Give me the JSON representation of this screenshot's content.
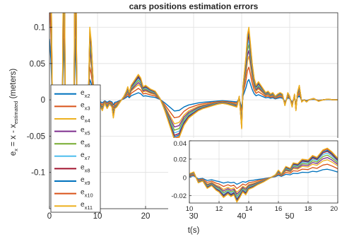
{
  "chart_data": [
    {
      "type": "line",
      "role": "main",
      "title": "cars positions estimation errors",
      "xlabel": "t(s)",
      "ylabel": {
        "base": "e",
        "base_sub": "x",
        "mid": " = x - x",
        "mid_sub": "estimated",
        "tail": " (meters)"
      },
      "xlim": [
        0,
        60
      ],
      "ylim": [
        -0.15,
        0.12
      ],
      "xticks": [
        0,
        10,
        20,
        30,
        40,
        50
      ],
      "yticks": [
        -0.1,
        -0.05,
        0,
        0.05,
        0.1
      ],
      "ytick_labels": [
        "-0.1",
        "-0.05",
        "0",
        "0.05",
        "0.1"
      ],
      "grid": true,
      "legend": "left-bottom, inside axes",
      "envelope_note": "each series = envelope value times its scale",
      "envelope_x": [
        0,
        0.3,
        0.6,
        0.9,
        1.2,
        1.5,
        1.8,
        2.1,
        2.4,
        2.7,
        3.0,
        3.3,
        3.6,
        3.9,
        4.2,
        4.5,
        4.8,
        5.1,
        5.4,
        5.7,
        6.0,
        6.3,
        6.6,
        6.9,
        7.2,
        7.5,
        7.8,
        8.1,
        8.4,
        8.7,
        9.0,
        9.3,
        9.6,
        9.9,
        10.2,
        10.5,
        11.0,
        11.5,
        12.0,
        12.5,
        13.0,
        13.3,
        13.6,
        14.0,
        14.5,
        15.0,
        15.5,
        16.0,
        16.3,
        16.6,
        17.0,
        17.5,
        18.0,
        18.5,
        19.0,
        19.5,
        20.0,
        21.0,
        22.0,
        23.0,
        24.0,
        25.0,
        26.0,
        27.0,
        28.0,
        29.0,
        30.0,
        31.0,
        32.0,
        33.0,
        34.0,
        35.0,
        36.0,
        37.0,
        38.0,
        39.0,
        39.5,
        40.0,
        40.3,
        40.6,
        40.9,
        41.2,
        41.5,
        41.8,
        42.2,
        42.6,
        43.0,
        43.5,
        44.0,
        44.5,
        45.0,
        45.5,
        46.0,
        46.5,
        47.0,
        47.5,
        48.0,
        48.5,
        49.0,
        49.3,
        49.6,
        50.0,
        50.5,
        51.0,
        51.3,
        51.6,
        52.0,
        52.5,
        53.0,
        53.5,
        54.0,
        55.0,
        56.0,
        57.0,
        58.0,
        59.0,
        60.0
      ],
      "envelope_y": [
        0.3,
        0.2,
        0.0,
        0.0,
        0.0,
        0.0,
        0.0,
        0.0,
        0.0,
        0.0,
        0.3,
        0.0,
        0.0,
        0.0,
        0.0,
        0.0,
        0.0,
        0.0,
        0.3,
        0.0,
        0.0,
        0.0,
        0.0,
        0.0,
        0.0,
        0.0,
        0.0,
        0.0,
        0.1,
        0.08,
        0.04,
        0.0,
        -0.015,
        -0.01,
        -0.02,
        -0.008,
        -0.015,
        -0.005,
        -0.012,
        -0.006,
        -0.01,
        -0.025,
        -0.012,
        -0.01,
        -0.005,
        0.0,
        0.005,
        0.012,
        0.018,
        0.01,
        0.02,
        0.025,
        0.03,
        0.035,
        0.03,
        0.018,
        0.02,
        0.015,
        0.012,
        0.002,
        -0.015,
        -0.035,
        -0.055,
        -0.052,
        -0.035,
        -0.025,
        -0.02,
        -0.015,
        -0.012,
        -0.01,
        -0.008,
        -0.006,
        -0.005,
        -0.006,
        -0.008,
        -0.01,
        0.005,
        -0.04,
        0.02,
        0.04,
        0.06,
        0.09,
        0.1,
        0.08,
        0.05,
        0.03,
        0.02,
        0.025,
        0.02,
        0.015,
        0.01,
        0.012,
        0.008,
        0.01,
        0.005,
        0.008,
        0.01,
        0.008,
        -0.008,
        0.0,
        0.01,
        0.005,
        -0.01,
        0.008,
        -0.015,
        0.01,
        0.02,
        -0.003,
        0.0,
        -0.003,
        0.0,
        0.002,
        -0.002,
        0.0,
        0.001,
        0.0,
        0.0
      ],
      "series": [
        {
          "name": "x2",
          "color": "#0072bd",
          "scale": 0.28
        },
        {
          "name": "x3",
          "color": "#d95319",
          "scale": 0.45
        },
        {
          "name": "x4",
          "color": "#edb120",
          "scale": 0.6
        },
        {
          "name": "x5",
          "color": "#7e2f8e",
          "scale": 0.68
        },
        {
          "name": "x6",
          "color": "#77ac30",
          "scale": 0.76
        },
        {
          "name": "x7",
          "color": "#4dbeee",
          "scale": 0.83
        },
        {
          "name": "x8",
          "color": "#a2142f",
          "scale": 0.89
        },
        {
          "name": "x9",
          "color": "#0072bd",
          "scale": 0.93
        },
        {
          "name": "x10",
          "color": "#d95319",
          "scale": 0.97
        },
        {
          "name": "x11",
          "color": "#edb120",
          "scale": 1.0
        }
      ]
    },
    {
      "type": "line",
      "role": "inset",
      "xlim": [
        10,
        20
      ],
      "ylim": [
        -0.028,
        0.04
      ],
      "xticks": [
        10,
        12,
        14,
        16,
        18,
        20
      ],
      "yticks": [
        -0.02,
        0,
        0.02,
        0.04
      ],
      "ytick_labels": [
        "-0.02",
        "0",
        "0.02",
        "0.04"
      ],
      "grid": true,
      "envelope_x": [
        10.0,
        10.3,
        10.6,
        10.9,
        11.2,
        11.5,
        11.8,
        12.0,
        12.3,
        12.6,
        12.8,
        13.0,
        13.2,
        13.4,
        13.6,
        13.8,
        14.0,
        14.3,
        14.6,
        15.0,
        15.4,
        15.8,
        16.0,
        16.2,
        16.5,
        16.8,
        17.0,
        17.3,
        17.6,
        18.0,
        18.3,
        18.6,
        19.0,
        19.3,
        19.6,
        20.0
      ],
      "envelope_y": [
        0.004,
        0.006,
        -0.006,
        -0.004,
        -0.012,
        -0.009,
        -0.014,
        -0.016,
        -0.022,
        -0.018,
        -0.021,
        -0.019,
        -0.027,
        -0.022,
        -0.016,
        -0.019,
        -0.013,
        -0.011,
        -0.008,
        -0.005,
        -0.001,
        0.003,
        0.008,
        0.004,
        0.012,
        0.01,
        0.016,
        0.015,
        0.02,
        0.019,
        0.024,
        0.022,
        0.03,
        0.032,
        0.028,
        0.021
      ]
    }
  ]
}
